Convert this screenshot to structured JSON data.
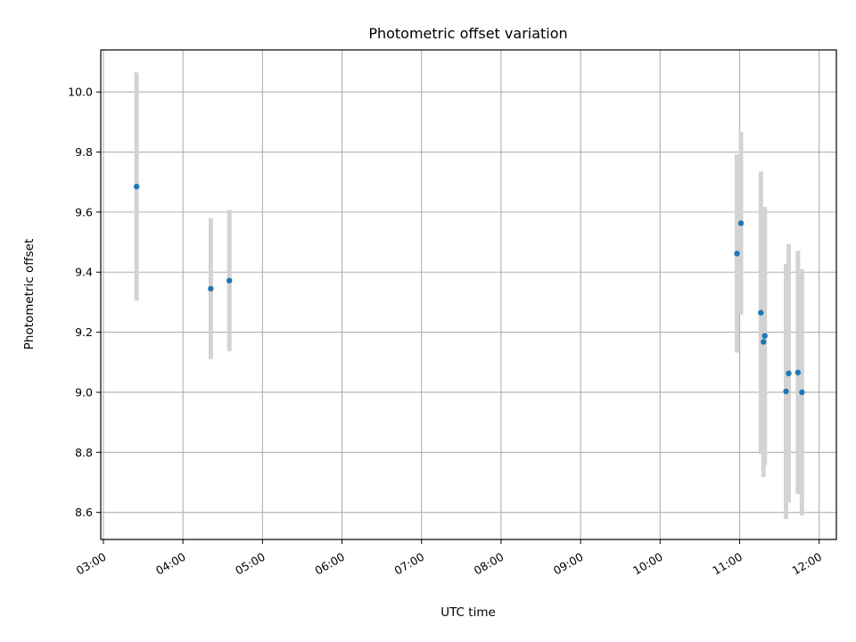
{
  "chart_data": {
    "type": "scatter",
    "title": "Photometric offset variation",
    "xlabel": "UTC time",
    "ylabel": "Photometric offset",
    "xlim": [
      "02:58",
      "12:13"
    ],
    "ylim": [
      8.51,
      10.14
    ],
    "grid": true,
    "x_ticks": [
      "03:00",
      "04:00",
      "05:00",
      "06:00",
      "07:00",
      "08:00",
      "09:00",
      "10:00",
      "11:00",
      "12:00"
    ],
    "y_ticks": [
      8.6,
      8.8,
      9.0,
      9.2,
      9.4,
      9.6,
      9.8,
      10.0
    ],
    "y_tick_labels": [
      "8.6",
      "8.8",
      "9.0",
      "9.2",
      "9.4",
      "9.6",
      "9.8",
      "10.0"
    ],
    "colors": {
      "points": "#1f77b4",
      "errorbars": "#d3d3d3",
      "grid": "#b0b0b0"
    },
    "series": [
      {
        "points": [
          {
            "x": "03:25",
            "y": 9.685,
            "yerr": 0.38
          },
          {
            "x": "04:21",
            "y": 9.345,
            "yerr": 0.235
          },
          {
            "x": "04:35",
            "y": 9.372,
            "yerr": 0.235
          },
          {
            "x": "10:58",
            "y": 9.462,
            "yerr": 0.33
          },
          {
            "x": "11:01",
            "y": 9.563,
            "yerr": 0.305
          },
          {
            "x": "11:16",
            "y": 9.265,
            "yerr": 0.47
          },
          {
            "x": "11:18",
            "y": 9.168,
            "yerr": 0.45
          },
          {
            "x": "11:19",
            "y": 9.188,
            "yerr": 0.43
          },
          {
            "x": "11:35",
            "y": 9.003,
            "yerr": 0.425
          },
          {
            "x": "11:37",
            "y": 9.063,
            "yerr": 0.43
          },
          {
            "x": "11:44",
            "y": 9.066,
            "yerr": 0.405
          },
          {
            "x": "11:47",
            "y": 9.0,
            "yerr": 0.41
          }
        ]
      }
    ]
  }
}
